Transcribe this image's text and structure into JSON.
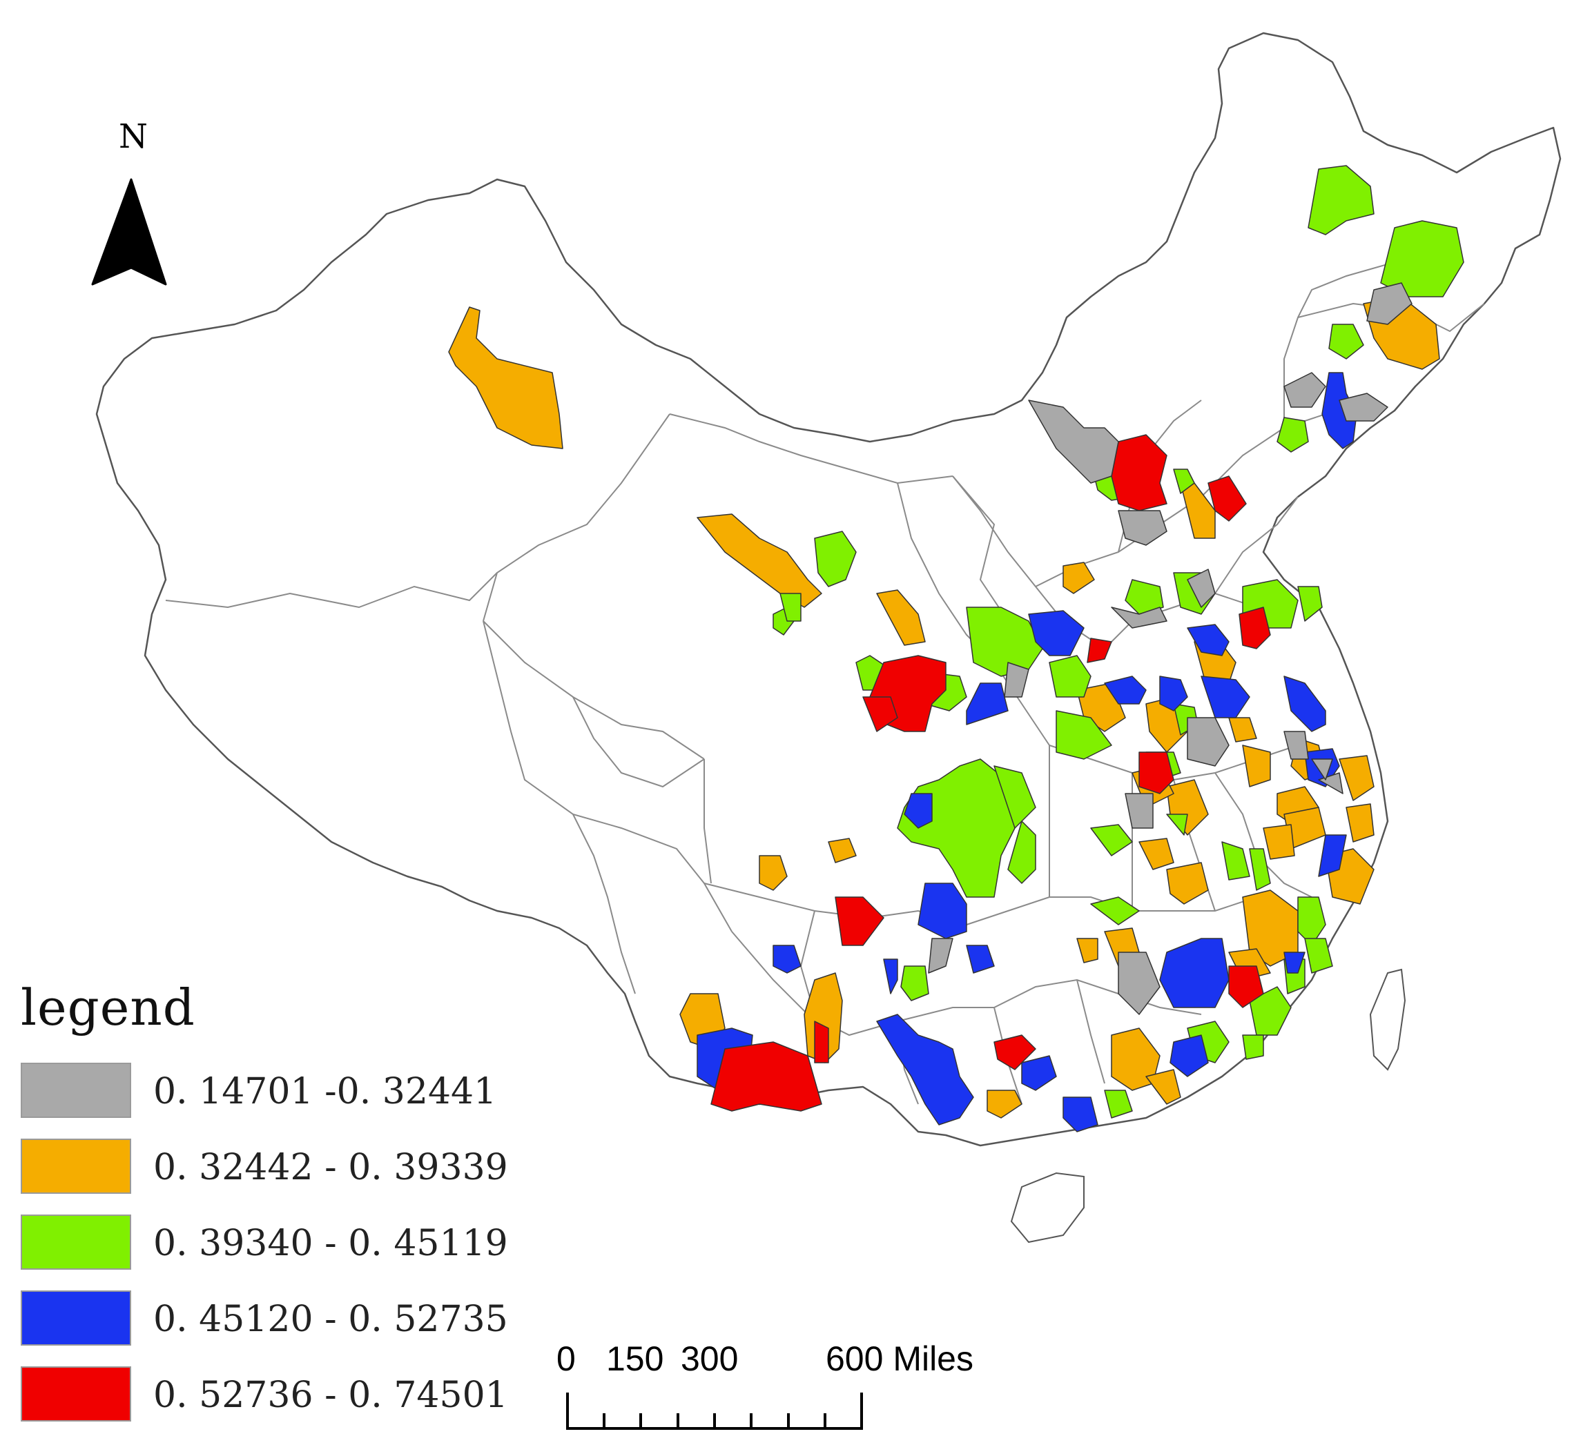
{
  "map": {
    "north_label": "N",
    "legend": {
      "title": "legend",
      "classes": [
        {
          "label": "0. 14701 -0. 32441",
          "color": "#a9a9a9"
        },
        {
          "label": "0. 32442 - 0. 39339",
          "color": "#f5ad00"
        },
        {
          "label": "0. 39340 - 0. 45119",
          "color": "#80f000"
        },
        {
          "label": "0. 45120 - 0. 52735",
          "color": "#1a34f0"
        },
        {
          "label": "0. 52736 - 0. 74501",
          "color": "#f00000"
        }
      ]
    },
    "scale_bar": {
      "labels": [
        "0",
        "150",
        "300",
        "600 Miles"
      ]
    }
  }
}
